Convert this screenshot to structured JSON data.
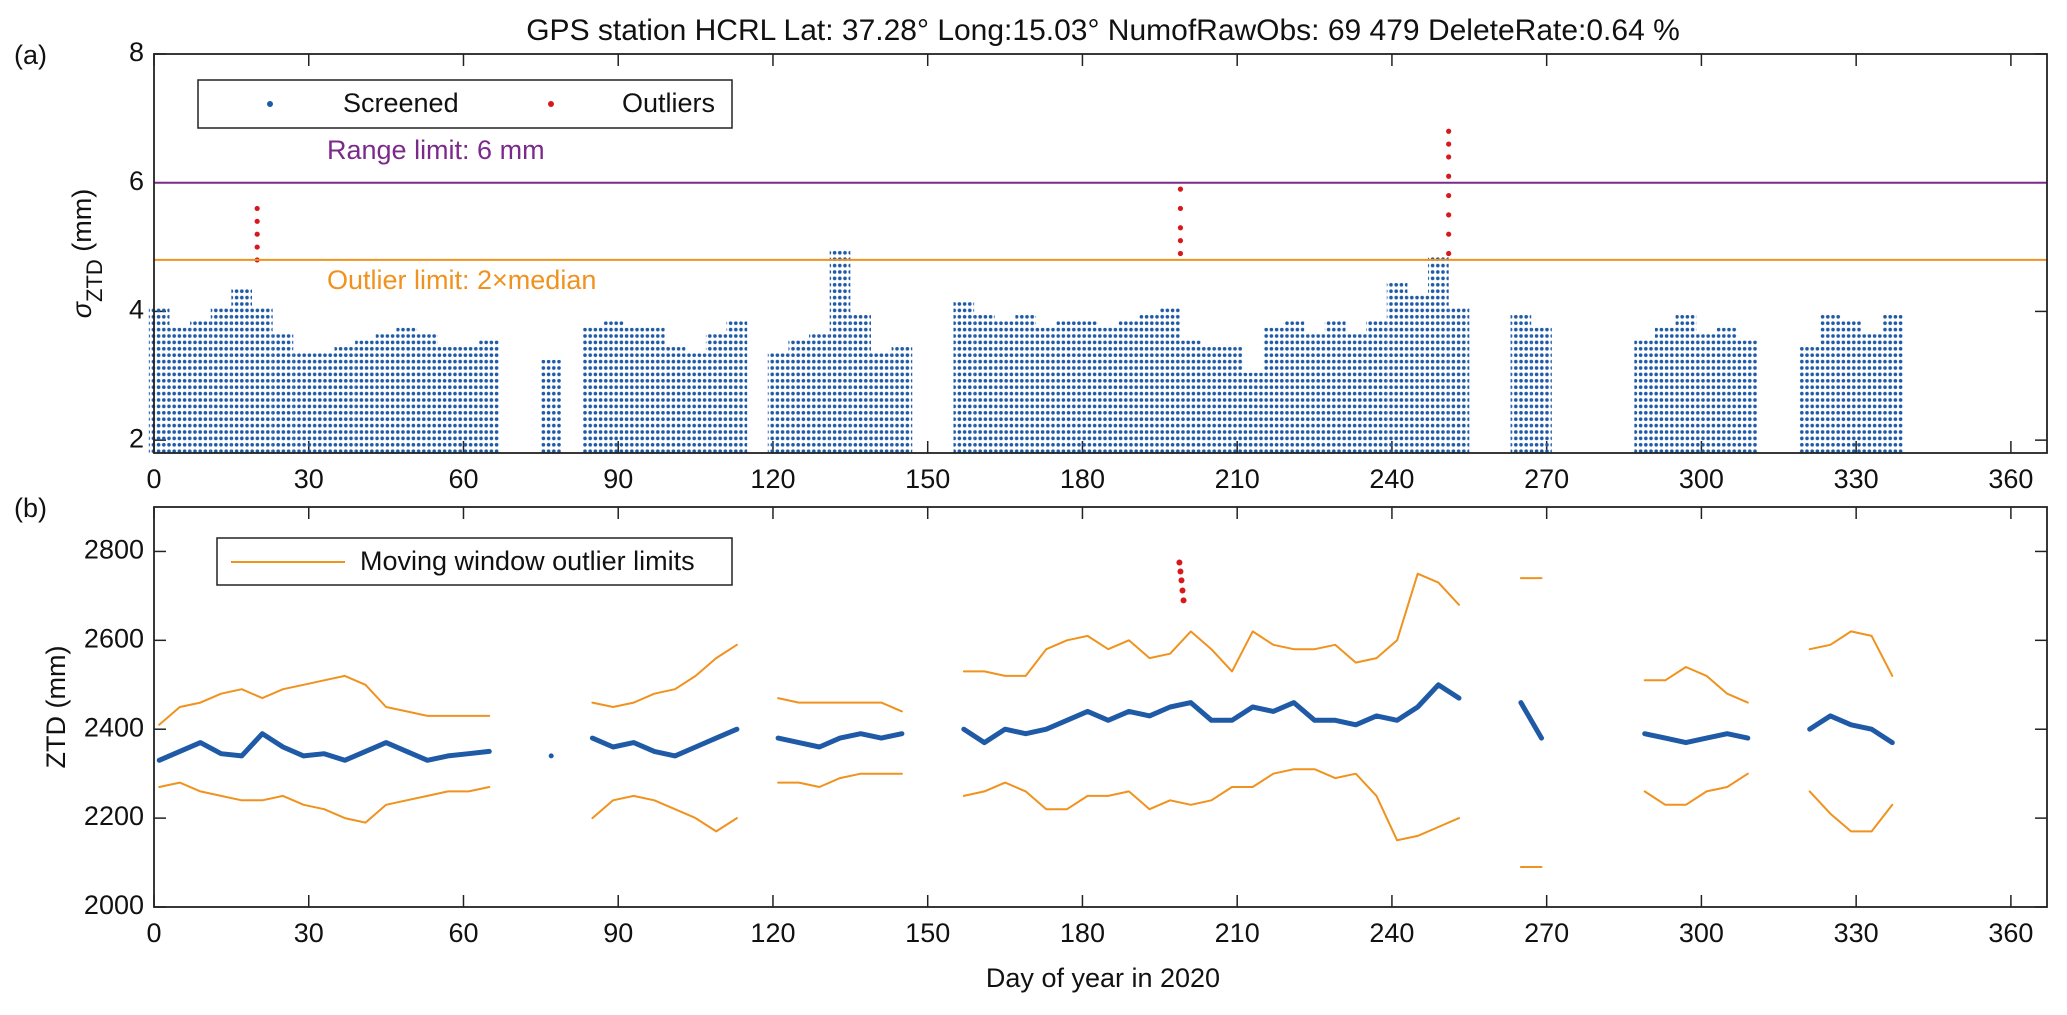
{
  "title": "GPS station HCRL    Lat: 37.28°    Long:15.03°    NumofRawObs: 69 479    DeleteRate:0.64 %",
  "xlabel": "Day of year in 2020",
  "chart_data": [
    {
      "type": "scatter",
      "panel": "(a)",
      "ylabel": {
        "symbol": "σ",
        "subscript": "ZTD",
        "unit": "(mm)"
      },
      "xlim": [
        0,
        367
      ],
      "ylim": [
        1.8,
        8
      ],
      "xticks": [
        0,
        30,
        60,
        90,
        120,
        150,
        180,
        210,
        240,
        270,
        300,
        330,
        360
      ],
      "yticks": [
        2,
        4,
        6,
        8
      ],
      "legend": "upper left",
      "hlines": [
        {
          "value": 6,
          "label": "Range limit: 6 mm",
          "color": "#7b2a8c"
        },
        {
          "value": 4.8,
          "label": "Outlier limit: 2×median",
          "color": "#f0921e"
        }
      ],
      "series": [
        {
          "name": "Screened",
          "color": "#1f5aa6",
          "style": "dot-columns",
          "x": [
            1,
            5,
            9,
            13,
            17,
            21,
            25,
            29,
            33,
            37,
            41,
            45,
            49,
            53,
            57,
            61,
            65,
            69,
            73,
            77,
            81,
            85,
            89,
            93,
            97,
            101,
            105,
            109,
            113,
            117,
            121,
            125,
            129,
            133,
            137,
            141,
            145,
            149,
            153,
            157,
            161,
            165,
            169,
            173,
            177,
            181,
            185,
            189,
            193,
            197,
            201,
            205,
            209,
            213,
            217,
            221,
            225,
            229,
            233,
            237,
            241,
            245,
            249,
            253,
            257,
            261,
            265,
            269,
            273,
            277,
            281,
            285,
            289,
            293,
            297,
            301,
            305,
            309,
            313,
            317,
            321,
            325,
            329,
            333,
            337
          ],
          "values": [
            4.0,
            3.7,
            3.8,
            4.0,
            4.3,
            4.0,
            3.6,
            3.3,
            3.3,
            3.4,
            3.5,
            3.6,
            3.7,
            3.6,
            3.4,
            3.4,
            3.5,
            null,
            null,
            3.2,
            null,
            3.7,
            3.8,
            3.7,
            3.7,
            3.4,
            3.3,
            3.6,
            3.8,
            null,
            3.3,
            3.5,
            3.6,
            4.9,
            3.9,
            3.3,
            3.4,
            null,
            null,
            4.1,
            3.9,
            3.8,
            3.9,
            3.7,
            3.8,
            3.8,
            3.7,
            3.8,
            3.9,
            4.0,
            3.5,
            3.4,
            3.4,
            3.0,
            3.7,
            3.8,
            3.6,
            3.8,
            3.6,
            3.8,
            4.4,
            4.2,
            4.8,
            4.0,
            null,
            null,
            3.9,
            3.7,
            null,
            null,
            null,
            null,
            3.5,
            3.7,
            3.9,
            3.6,
            3.7,
            3.5,
            null,
            null,
            3.4,
            3.9,
            3.8,
            3.6,
            3.9
          ]
        },
        {
          "name": "Outliers",
          "color": "#d7191c",
          "style": "dots",
          "x": [
            20,
            20,
            20,
            20,
            20,
            199,
            199,
            199,
            199,
            199,
            251,
            251,
            251,
            251,
            251,
            251,
            251,
            251
          ],
          "values": [
            4.8,
            5.0,
            5.2,
            5.4,
            5.6,
            4.9,
            5.1,
            5.3,
            5.6,
            5.9,
            4.9,
            5.2,
            5.5,
            5.8,
            6.1,
            6.4,
            6.6,
            6.8
          ]
        }
      ]
    },
    {
      "type": "line",
      "panel": "(b)",
      "ylabel": "ZTD (mm)",
      "xlim": [
        0,
        367
      ],
      "ylim": [
        2000,
        2900
      ],
      "xticks": [
        0,
        30,
        60,
        90,
        120,
        150,
        180,
        210,
        240,
        270,
        300,
        330,
        360
      ],
      "yticks": [
        2000,
        2200,
        2400,
        2600,
        2800
      ],
      "legend": "upper left",
      "x": [
        1,
        5,
        9,
        13,
        17,
        21,
        25,
        29,
        33,
        37,
        41,
        45,
        49,
        53,
        57,
        61,
        65,
        69,
        73,
        77,
        81,
        85,
        89,
        93,
        97,
        101,
        105,
        109,
        113,
        117,
        121,
        125,
        129,
        133,
        137,
        141,
        145,
        149,
        153,
        157,
        161,
        165,
        169,
        173,
        177,
        181,
        185,
        189,
        193,
        197,
        201,
        205,
        209,
        213,
        217,
        221,
        225,
        229,
        233,
        237,
        241,
        245,
        249,
        253,
        257,
        261,
        265,
        269,
        273,
        277,
        281,
        285,
        289,
        293,
        297,
        301,
        305,
        309,
        313,
        317,
        321,
        325,
        329,
        333,
        337
      ],
      "series": [
        {
          "color": "#1f5aa6",
          "width": 5,
          "values": [
            2330,
            2350,
            2370,
            2345,
            2340,
            2390,
            2360,
            2340,
            2345,
            2330,
            2350,
            2370,
            2350,
            2330,
            2340,
            2345,
            2350,
            null,
            null,
            2340,
            null,
            2380,
            2360,
            2370,
            2350,
            2340,
            2360,
            2380,
            2400,
            null,
            2380,
            2370,
            2360,
            2380,
            2390,
            2380,
            2390,
            null,
            null,
            2400,
            2370,
            2400,
            2390,
            2400,
            2420,
            2440,
            2420,
            2440,
            2430,
            2450,
            2460,
            2420,
            2420,
            2450,
            2440,
            2460,
            2420,
            2420,
            2410,
            2430,
            2420,
            2450,
            2500,
            2470,
            null,
            null,
            2460,
            2380,
            null,
            null,
            null,
            null,
            2390,
            2380,
            2370,
            2380,
            2390,
            2380,
            null,
            null,
            2400,
            2430,
            2410,
            2400,
            2370
          ]
        },
        {
          "name": "Moving window outlier limits",
          "color": "#f0921e",
          "width": 2,
          "values": [
            2410,
            2450,
            2460,
            2480,
            2490,
            2470,
            2490,
            2500,
            2510,
            2520,
            2500,
            2450,
            2440,
            2430,
            2430,
            2430,
            2430,
            null,
            null,
            null,
            null,
            2460,
            2450,
            2460,
            2480,
            2490,
            2520,
            2560,
            2590,
            null,
            2470,
            2460,
            2460,
            2460,
            2460,
            2460,
            2440,
            null,
            null,
            2530,
            2530,
            2520,
            2520,
            2580,
            2600,
            2610,
            2580,
            2600,
            2560,
            2570,
            2620,
            2580,
            2530,
            2620,
            2590,
            2580,
            2580,
            2590,
            2550,
            2560,
            2600,
            2750,
            2730,
            2680,
            null,
            null,
            2740,
            2740,
            null,
            null,
            null,
            null,
            2510,
            2510,
            2540,
            2520,
            2480,
            2460,
            null,
            null,
            2580,
            2590,
            2620,
            2610,
            2520
          ]
        },
        {
          "color": "#f0921e",
          "width": 2,
          "values": [
            2270,
            2280,
            2260,
            2250,
            2240,
            2240,
            2250,
            2230,
            2220,
            2200,
            2190,
            2230,
            2240,
            2250,
            2260,
            2260,
            2270,
            null,
            null,
            null,
            null,
            2200,
            2240,
            2250,
            2240,
            2220,
            2200,
            2170,
            2200,
            null,
            2280,
            2280,
            2270,
            2290,
            2300,
            2300,
            2300,
            null,
            null,
            2250,
            2260,
            2280,
            2260,
            2220,
            2220,
            2250,
            2250,
            2260,
            2220,
            2240,
            2230,
            2240,
            2270,
            2270,
            2300,
            2310,
            2310,
            2290,
            2300,
            2250,
            2150,
            2160,
            2180,
            2200,
            null,
            null,
            2090,
            2090,
            null,
            null,
            null,
            null,
            2260,
            2230,
            2230,
            2260,
            2270,
            2300,
            null,
            null,
            2260,
            2210,
            2170,
            2170,
            2230
          ]
        }
      ],
      "points": {
        "color": "#d7191c",
        "x": [
          198.8,
          199,
          199.2,
          199.4,
          199.6
        ],
        "values": [
          2775,
          2755,
          2735,
          2712,
          2690
        ]
      }
    }
  ]
}
